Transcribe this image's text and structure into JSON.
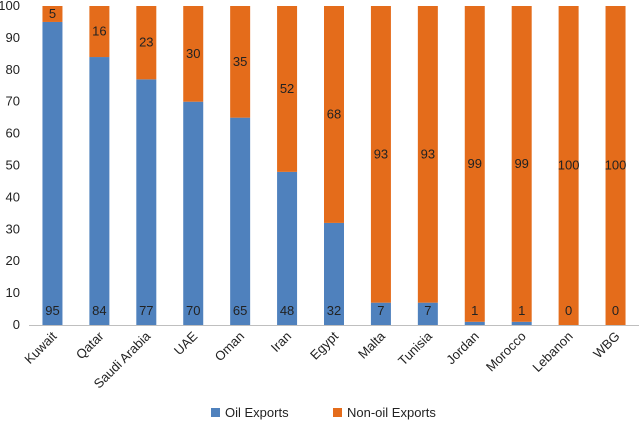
{
  "chart_data": {
    "type": "bar",
    "stacked": true,
    "categories": [
      "Kuwait",
      "Qatar",
      "Saudi Arabia",
      "UAE",
      "Oman",
      "Iran",
      "Egypt",
      "Malta",
      "Tunisia",
      "Jordan",
      "Morocco",
      "Lebanon",
      "WBG"
    ],
    "series": [
      {
        "name": "Oil Exports",
        "color": "#4f81bd",
        "values": [
          95,
          84,
          77,
          70,
          65,
          48,
          32,
          7,
          7,
          1,
          1,
          0,
          0
        ]
      },
      {
        "name": "Non-oil Exports",
        "color": "#e46c1b",
        "values": [
          5,
          16,
          23,
          30,
          35,
          52,
          68,
          93,
          93,
          99,
          99,
          100,
          100
        ]
      }
    ],
    "ylim": [
      0,
      100
    ],
    "yticks": [
      0,
      10,
      20,
      30,
      40,
      50,
      60,
      70,
      80,
      90,
      100
    ],
    "grid": false,
    "legend_position": "bottom"
  }
}
